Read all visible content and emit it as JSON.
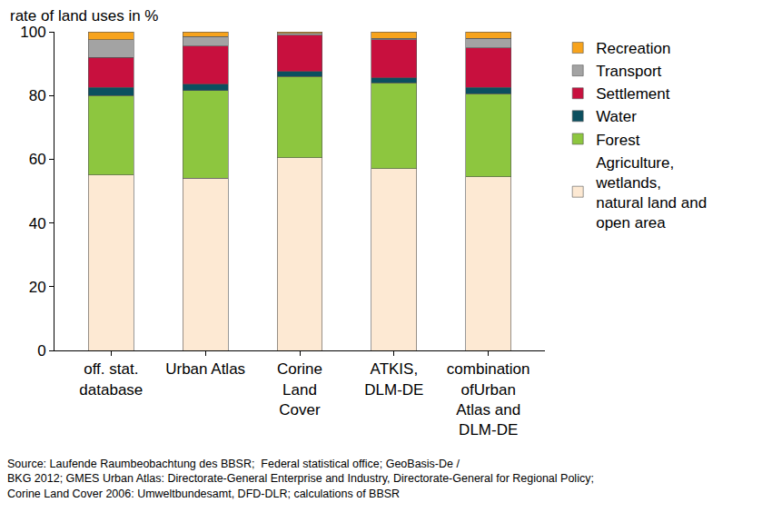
{
  "chart_data": {
    "type": "bar",
    "stacked": true,
    "ylabel": "rate of land uses in %",
    "categories": [
      "off. stat.\ndatabase",
      "Urban Atlas",
      "Corine\nLand\nCover",
      "ATKIS,\nDLM-DE",
      "combination\nofUrban\nAtlas and\nDLM-DE"
    ],
    "series": [
      {
        "name": "Agriculture,\nwetlands,\nnatural land and\nopen area",
        "color": "#fde9d3",
        "values": [
          55,
          54,
          60.5,
          57,
          54.5
        ]
      },
      {
        "name": "Forest",
        "color": "#8dc63f",
        "values": [
          25,
          27.5,
          25.5,
          27,
          26
        ]
      },
      {
        "name": "Water",
        "color": "#0b4f5f",
        "values": [
          2.5,
          2,
          1.5,
          1.5,
          2
        ]
      },
      {
        "name": "Settlement",
        "color": "#c8103e",
        "values": [
          9.5,
          12,
          11.5,
          12,
          12.5
        ]
      },
      {
        "name": "Transport",
        "color": "#a3a3a3",
        "values": [
          5.5,
          3,
          0.5,
          0.5,
          3
        ]
      },
      {
        "name": "Recreation",
        "color": "#f7a31c",
        "values": [
          2.5,
          1.5,
          0.5,
          2,
          2
        ]
      }
    ],
    "ylim": [
      0,
      100
    ],
    "yticks": [
      0,
      20,
      40,
      60,
      80,
      100
    ],
    "grid": false,
    "legend": "right",
    "annotations": [
      "Source: Laufende Raumbeobachtung des BBSR;  Federal statistical office; GeoBasis-De /\nBKG 2012; GMES Urban Atlas: Directorate-General Enterprise and Industry, Directorate-General for Regional Policy;\nCorine Land Cover 2006: Umweltbundesamt, DFD-DLR; calculations of BBSR"
    ]
  }
}
